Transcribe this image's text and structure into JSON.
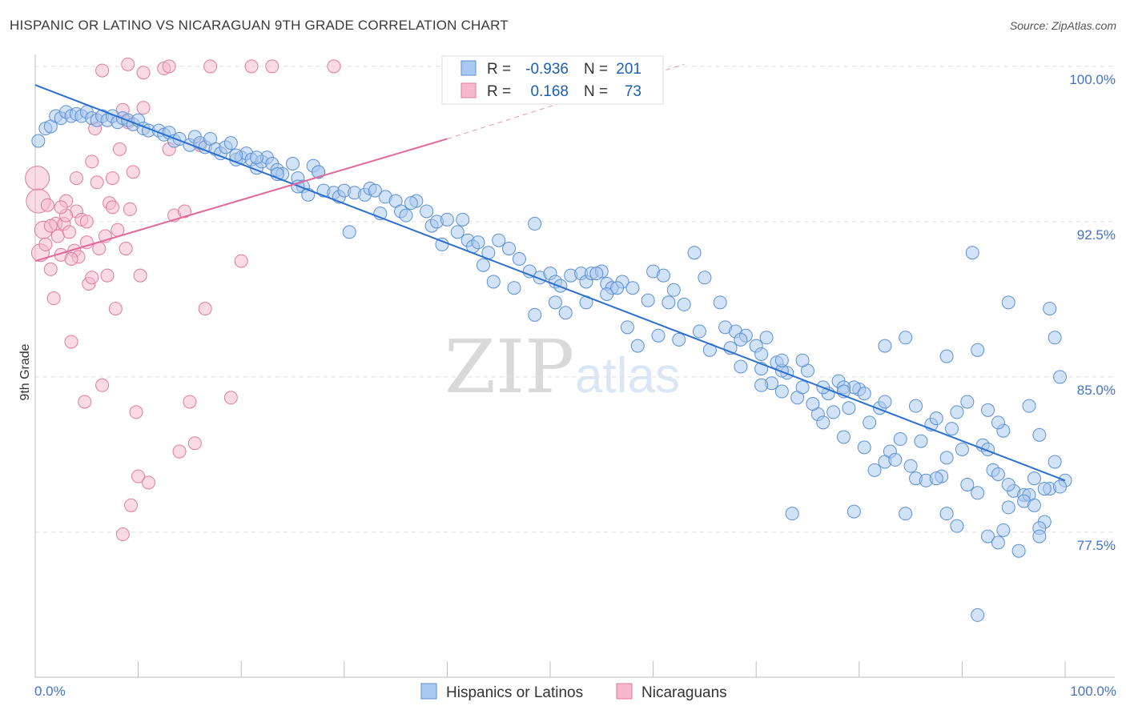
{
  "title": "HISPANIC OR LATINO VS NICARAGUAN 9TH GRADE CORRELATION CHART",
  "source": "Source: ZipAtlas.com",
  "watermark": {
    "zip": "ZIP",
    "atlas": "atlas"
  },
  "colors": {
    "blue_fill": "#a8c8f0",
    "blue_stroke": "#5b8fd6",
    "blue_line": "#2a6fd0",
    "pink_fill": "#f6b8cc",
    "pink_stroke": "#e07aa0",
    "pink_line": "#e0689a",
    "grid": "#dddddd",
    "axis_text": "#4472c4"
  },
  "chart_data": {
    "type": "scatter",
    "title": "HISPANIC OR LATINO VS NICARAGUAN 9TH GRADE CORRELATION CHART",
    "xlabel": "",
    "ylabel": "9th Grade",
    "xlim": [
      0,
      100
    ],
    "ylim": [
      70.5,
      100.5
    ],
    "x_tick_labels": [
      "0.0%",
      "100.0%"
    ],
    "y_ticks": [
      77.5,
      85.0,
      92.5,
      100.0
    ],
    "y_tick_labels": [
      "77.5%",
      "85.0%",
      "92.5%",
      "100.0%"
    ],
    "legend": [
      {
        "name": "R =",
        "r": "-0.936",
        "n_label": "N =",
        "n": "201"
      },
      {
        "name": "R =",
        "r": "0.168",
        "n_label": "N =",
        "n": "73"
      }
    ],
    "series": [
      {
        "name": "Hispanics or Latinos",
        "trend": {
          "x": [
            0,
            100
          ],
          "y": [
            99.1,
            80.0
          ]
        },
        "points": [
          [
            0.3,
            96.4
          ],
          [
            1,
            97
          ],
          [
            1.5,
            97.1
          ],
          [
            2,
            97.6
          ],
          [
            2.5,
            97.5
          ],
          [
            3,
            97.8
          ],
          [
            3.5,
            97.6
          ],
          [
            4,
            97.7
          ],
          [
            4.5,
            97.6
          ],
          [
            5,
            97.8
          ],
          [
            5.5,
            97.5
          ],
          [
            6,
            97.4
          ],
          [
            6.5,
            97.6
          ],
          [
            7,
            97.4
          ],
          [
            7.5,
            97.6
          ],
          [
            8,
            97.3
          ],
          [
            8.5,
            97.5
          ],
          [
            9,
            97.4
          ],
          [
            9.5,
            97.2
          ],
          [
            10,
            97.4
          ],
          [
            10.5,
            97.0
          ],
          [
            11,
            96.9
          ],
          [
            12,
            96.9
          ],
          [
            12.5,
            96.7
          ],
          [
            13,
            96.8
          ],
          [
            13.5,
            96.4
          ],
          [
            14,
            96.5
          ],
          [
            15,
            96.2
          ],
          [
            15.5,
            96.6
          ],
          [
            16,
            96.3
          ],
          [
            16.5,
            96.1
          ],
          [
            17,
            96.5
          ],
          [
            17.5,
            96.0
          ],
          [
            18,
            95.8
          ],
          [
            18.5,
            96.1
          ],
          [
            19,
            96.3
          ],
          [
            19.5,
            95.5
          ],
          [
            20,
            95.6
          ],
          [
            20.5,
            95.8
          ],
          [
            21,
            95.5
          ],
          [
            21.5,
            95.1
          ],
          [
            22,
            95.4
          ],
          [
            22.5,
            95.6
          ],
          [
            23,
            95.3
          ],
          [
            23.5,
            95.0
          ],
          [
            24,
            94.8
          ],
          [
            25,
            95.3
          ],
          [
            25.5,
            94.6
          ],
          [
            26,
            94.2
          ],
          [
            26.5,
            93.8
          ],
          [
            27,
            95.2
          ],
          [
            27.5,
            94.9
          ],
          [
            28,
            94.0
          ],
          [
            29,
            93.9
          ],
          [
            29.5,
            93.7
          ],
          [
            30,
            94.0
          ],
          [
            31,
            93.9
          ],
          [
            32,
            93.8
          ],
          [
            32.5,
            94.1
          ],
          [
            33,
            94.0
          ],
          [
            34,
            93.7
          ],
          [
            35,
            93.5
          ],
          [
            35.5,
            93.0
          ],
          [
            36,
            92.8
          ],
          [
            37,
            93.5
          ],
          [
            38,
            93.0
          ],
          [
            38.5,
            92.3
          ],
          [
            39,
            92.5
          ],
          [
            40,
            92.6
          ],
          [
            41,
            92.0
          ],
          [
            42,
            91.6
          ],
          [
            42.5,
            91.3
          ],
          [
            43,
            91.5
          ],
          [
            44,
            91.0
          ],
          [
            45,
            91.6
          ],
          [
            46,
            91.2
          ],
          [
            47,
            90.7
          ],
          [
            48,
            90.1
          ],
          [
            49,
            89.8
          ],
          [
            50,
            90.0
          ],
          [
            50.5,
            89.6
          ],
          [
            51,
            89.4
          ],
          [
            52,
            89.9
          ],
          [
            53,
            90.0
          ],
          [
            53.5,
            89.6
          ],
          [
            54,
            90.0
          ],
          [
            55,
            90.1
          ],
          [
            55.5,
            89.5
          ],
          [
            56,
            89.3
          ],
          [
            57,
            89.6
          ],
          [
            58,
            89.3
          ],
          [
            60,
            90.1
          ],
          [
            61,
            89.9
          ],
          [
            62,
            89.2
          ],
          [
            63,
            88.5
          ],
          [
            64,
            91.0
          ],
          [
            65,
            89.8
          ],
          [
            67,
            87.4
          ],
          [
            68,
            87.2
          ],
          [
            69,
            87.0
          ],
          [
            70,
            86.5
          ],
          [
            71,
            86.9
          ],
          [
            72,
            85.7
          ],
          [
            73,
            85.2
          ],
          [
            74,
            84.0
          ],
          [
            75,
            85.3
          ],
          [
            76,
            83.2
          ],
          [
            77,
            84.2
          ],
          [
            78,
            84.8
          ],
          [
            79,
            83.5
          ],
          [
            80,
            84.4
          ],
          [
            81,
            82.8
          ],
          [
            82,
            83.5
          ],
          [
            83,
            81.4
          ],
          [
            84,
            82.0
          ],
          [
            85,
            80.7
          ],
          [
            86,
            81.9
          ],
          [
            87,
            82.7
          ],
          [
            88,
            80.2
          ],
          [
            89,
            82.5
          ],
          [
            90,
            81.5
          ],
          [
            91,
            91.0
          ],
          [
            92,
            81.7
          ],
          [
            93,
            80.5
          ],
          [
            94,
            82.4
          ],
          [
            95,
            79.5
          ],
          [
            96,
            79.3
          ],
          [
            97,
            80.1
          ],
          [
            98,
            78.0
          ],
          [
            99,
            80.9
          ],
          [
            100,
            80.0
          ],
          [
            30.5,
            92.0
          ],
          [
            33.5,
            92.9
          ],
          [
            36.5,
            93.4
          ],
          [
            39.5,
            91.4
          ],
          [
            41.5,
            92.6
          ],
          [
            43.5,
            90.4
          ],
          [
            44.5,
            89.6
          ],
          [
            46.5,
            89.3
          ],
          [
            48.5,
            88.0
          ],
          [
            50.5,
            88.6
          ],
          [
            51.5,
            88.1
          ],
          [
            53.5,
            88.6
          ],
          [
            55.5,
            89.0
          ],
          [
            57.5,
            87.4
          ],
          [
            58.5,
            86.5
          ],
          [
            60.5,
            87.0
          ],
          [
            62.5,
            86.8
          ],
          [
            64.5,
            87.2
          ],
          [
            65.5,
            86.3
          ],
          [
            67.5,
            86.4
          ],
          [
            68.5,
            85.5
          ],
          [
            70.5,
            85.4
          ],
          [
            71.5,
            84.7
          ],
          [
            72.5,
            84.3
          ],
          [
            74.5,
            84.5
          ],
          [
            75.5,
            83.7
          ],
          [
            77.5,
            83.3
          ],
          [
            78.5,
            82.1
          ],
          [
            79.5,
            84.5
          ],
          [
            80.5,
            81.6
          ],
          [
            81.5,
            80.5
          ],
          [
            82.5,
            80.9
          ],
          [
            83.5,
            81.0
          ],
          [
            84.5,
            78.4
          ],
          [
            85.5,
            80.1
          ],
          [
            86.5,
            80.0
          ],
          [
            87.5,
            80.1
          ],
          [
            88.5,
            81.1
          ],
          [
            89.5,
            77.8
          ],
          [
            90.5,
            79.8
          ],
          [
            91.5,
            79.4
          ],
          [
            92.5,
            81.5
          ],
          [
            93.5,
            80.3
          ],
          [
            94.5,
            78.7
          ],
          [
            95.5,
            76.6
          ],
          [
            96.5,
            79.3
          ],
          [
            97.5,
            77.7
          ],
          [
            98.5,
            79.6
          ],
          [
            99.5,
            79.7
          ],
          [
            19.5,
            95.7
          ],
          [
            21.5,
            95.6
          ],
          [
            23.5,
            94.8
          ],
          [
            25.5,
            94.2
          ],
          [
            27.5,
            94.9
          ],
          [
            48.5,
            92.4
          ],
          [
            54.5,
            90.0
          ],
          [
            56.5,
            89.3
          ],
          [
            59.5,
            88.7
          ],
          [
            61.5,
            88.6
          ],
          [
            66.5,
            88.6
          ],
          [
            68.5,
            86.8
          ],
          [
            70.5,
            86.1
          ],
          [
            72.5,
            85.3
          ],
          [
            74.5,
            85.8
          ],
          [
            76.5,
            84.5
          ],
          [
            78.5,
            84.5
          ],
          [
            80.5,
            84.2
          ],
          [
            82.5,
            83.8
          ],
          [
            85.5,
            83.6
          ],
          [
            87.5,
            83.0
          ],
          [
            88.5,
            78.4
          ],
          [
            89.5,
            83.3
          ],
          [
            90.5,
            83.8
          ],
          [
            92.5,
            83.4
          ],
          [
            93.5,
            82.8
          ],
          [
            94.5,
            79.8
          ],
          [
            96.5,
            83.6
          ],
          [
            97.5,
            82.2
          ],
          [
            99.5,
            85.0
          ],
          [
            98.5,
            88.3
          ],
          [
            99.0,
            86.9
          ],
          [
            94.5,
            88.6
          ],
          [
            91.5,
            86.3
          ],
          [
            88.5,
            86.0
          ],
          [
            84.5,
            86.9
          ],
          [
            82.5,
            86.5
          ],
          [
            78.5,
            84.3
          ],
          [
            76.5,
            82.8
          ],
          [
            72.5,
            85.8
          ],
          [
            70.5,
            84.6
          ],
          [
            73.5,
            78.4
          ],
          [
            79.5,
            78.5
          ],
          [
            92.5,
            77.3
          ],
          [
            93.5,
            77.0
          ],
          [
            94.0,
            77.6
          ],
          [
            97.5,
            77.3
          ],
          [
            98.0,
            79.6
          ],
          [
            91.5,
            73.5
          ],
          [
            96.0,
            79.0
          ],
          [
            97.0,
            78.8
          ]
        ]
      },
      {
        "name": "Nicaraguans",
        "trend": {
          "x": [
            0,
            40
          ],
          "y": [
            90.6,
            96.5
          ]
        },
        "trend_dashed": {
          "x": [
            40,
            63
          ],
          "y": [
            96.5,
            100.1
          ]
        },
        "points": [
          [
            0.2,
            94.6
          ],
          [
            0.3,
            93.5
          ],
          [
            0.5,
            91.0
          ],
          [
            0.8,
            92.1
          ],
          [
            1,
            91.4
          ],
          [
            1.2,
            93.3
          ],
          [
            1.5,
            90.2
          ],
          [
            1.8,
            88.8
          ],
          [
            2,
            92.4
          ],
          [
            2.2,
            91.8
          ],
          [
            2.5,
            90.9
          ],
          [
            2.8,
            92.4
          ],
          [
            3,
            93.5
          ],
          [
            3.3,
            92.0
          ],
          [
            3.5,
            86.7
          ],
          [
            3.8,
            91.1
          ],
          [
            4,
            93.0
          ],
          [
            4.2,
            90.8
          ],
          [
            4.5,
            92.6
          ],
          [
            4.8,
            83.8
          ],
          [
            5,
            91.5
          ],
          [
            5.2,
            89.5
          ],
          [
            5.5,
            89.8
          ],
          [
            5.8,
            97.0
          ],
          [
            6,
            94.4
          ],
          [
            6.2,
            91.2
          ],
          [
            6.5,
            84.6
          ],
          [
            6.8,
            91.8
          ],
          [
            7,
            89.9
          ],
          [
            7.2,
            93.4
          ],
          [
            7.5,
            93.2
          ],
          [
            7.8,
            88.3
          ],
          [
            8,
            92.1
          ],
          [
            8.2,
            96.0
          ],
          [
            8.5,
            97.9
          ],
          [
            8.8,
            91.2
          ],
          [
            9,
            97.3
          ],
          [
            9.2,
            93.1
          ],
          [
            9.5,
            94.9
          ],
          [
            9.8,
            83.3
          ],
          [
            10,
            80.2
          ],
          [
            10.2,
            89.9
          ],
          [
            10.5,
            98.0
          ],
          [
            11,
            79.9
          ],
          [
            9.3,
            78.8
          ],
          [
            8.5,
            77.4
          ],
          [
            13,
            96.0
          ],
          [
            13.5,
            92.8
          ],
          [
            14,
            81.4
          ],
          [
            14.5,
            93.0
          ],
          [
            15,
            83.8
          ],
          [
            15.5,
            81.8
          ],
          [
            16,
            96.2
          ],
          [
            16.5,
            88.3
          ],
          [
            19,
            84.0
          ],
          [
            20,
            90.6
          ],
          [
            5.5,
            95.4
          ],
          [
            6.5,
            99.8
          ],
          [
            9,
            100.1
          ],
          [
            10.5,
            99.7
          ],
          [
            12.5,
            99.9
          ],
          [
            13,
            100.0
          ],
          [
            17,
            100.0
          ],
          [
            21,
            100.0
          ],
          [
            23,
            100.0
          ],
          [
            29,
            100.0
          ],
          [
            7.5,
            94.6
          ],
          [
            4.0,
            94.6
          ],
          [
            3.0,
            92.8
          ],
          [
            5.0,
            92.5
          ],
          [
            2.5,
            93.2
          ],
          [
            1.5,
            92.3
          ],
          [
            3.5,
            90.7
          ]
        ]
      }
    ]
  },
  "bottom_legend": {
    "blue": "Hispanics or Latinos",
    "pink": "Nicaraguans"
  }
}
